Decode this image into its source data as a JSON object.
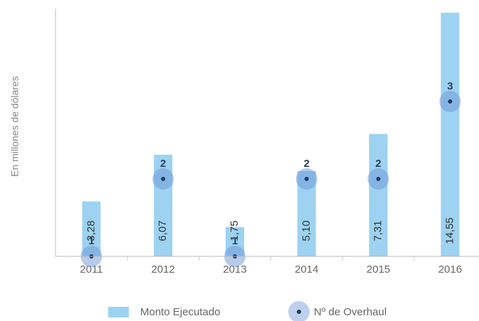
{
  "chart_data": {
    "type": "bar",
    "y_label": "En millones de dólares",
    "categories": [
      "2011",
      "2012",
      "2013",
      "2014",
      "2015",
      "2016"
    ],
    "series": [
      {
        "name": "Monto Ejecutado",
        "type": "bar",
        "color": "#9dd2f1",
        "values": [
          3.28,
          6.07,
          1.75,
          5.1,
          7.31,
          14.55
        ],
        "value_labels": [
          "3,28",
          "6,07",
          "1,75",
          "5,10",
          "7,31",
          "14,55"
        ]
      },
      {
        "name": "Nº de Overhaul",
        "type": "scatter",
        "axis": "y2",
        "color": "#1f3a64",
        "values": [
          1,
          2,
          1,
          2,
          2,
          3
        ]
      }
    ],
    "ylim": [
      0,
      14.8
    ],
    "y2lim": [
      1,
      4.2
    ],
    "grid": false
  }
}
